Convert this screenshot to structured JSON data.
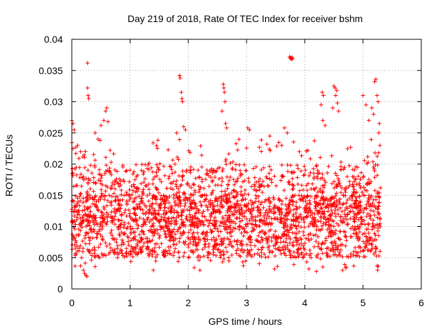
{
  "chart_data": {
    "type": "scatter",
    "title": "Day 219 of 2018, Rate Of TEC Index for receiver bshm",
    "xlabel": "GPS time / hours",
    "ylabel": "ROTI / TECUs",
    "xlim": [
      0,
      6
    ],
    "ylim": [
      0,
      0.04
    ],
    "x_ticks": [
      0,
      1,
      2,
      3,
      4,
      5,
      6
    ],
    "x_tick_labels": [
      "0",
      "1",
      "2",
      "3",
      "4",
      "5",
      "6"
    ],
    "y_ticks": [
      0,
      0.005,
      0.01,
      0.015,
      0.02,
      0.025,
      0.03,
      0.035,
      0.04
    ],
    "y_tick_labels": [
      "0",
      "0.005",
      "0.01",
      "0.015",
      "0.02",
      "0.025",
      "0.03",
      "0.035",
      "0.04"
    ],
    "grid": true,
    "marker": "+",
    "color": "#ff0000",
    "series": [
      {
        "name": "ROTI",
        "x_range": [
          0,
          5.3
        ],
        "typical_range": [
          0.003,
          0.024
        ],
        "points": [
          [
            0.0,
            0.027
          ],
          [
            0.02,
            0.0265
          ],
          [
            0.04,
            0.0255
          ],
          [
            0.1,
            0.023
          ],
          [
            0.15,
            0.022
          ],
          [
            0.2,
            0.003
          ],
          [
            0.22,
            0.0025
          ],
          [
            0.24,
            0.0022
          ],
          [
            0.26,
            0.002
          ],
          [
            0.27,
            0.0362
          ],
          [
            0.27,
            0.0322
          ],
          [
            0.28,
            0.031
          ],
          [
            0.29,
            0.0305
          ],
          [
            0.4,
            0.025
          ],
          [
            0.45,
            0.024
          ],
          [
            0.5,
            0.0262
          ],
          [
            0.55,
            0.027
          ],
          [
            0.58,
            0.0285
          ],
          [
            0.6,
            0.029
          ],
          [
            0.62,
            0.0268
          ],
          [
            1.85,
            0.0342
          ],
          [
            1.86,
            0.0338
          ],
          [
            1.88,
            0.0315
          ],
          [
            1.89,
            0.0305
          ],
          [
            1.9,
            0.03
          ],
          [
            1.8,
            0.025
          ],
          [
            1.92,
            0.026
          ],
          [
            1.95,
            0.0255
          ],
          [
            2.6,
            0.0328
          ],
          [
            2.61,
            0.0322
          ],
          [
            2.62,
            0.0315
          ],
          [
            2.63,
            0.03
          ],
          [
            2.58,
            0.0285
          ],
          [
            2.64,
            0.0265
          ],
          [
            2.66,
            0.0258
          ],
          [
            3.02,
            0.0258
          ],
          [
            3.05,
            0.0255
          ],
          [
            3.4,
            0.0245
          ],
          [
            3.65,
            0.0258
          ],
          [
            3.7,
            0.025
          ],
          [
            3.74,
            0.0372
          ],
          [
            3.75,
            0.037
          ],
          [
            3.76,
            0.037
          ],
          [
            3.77,
            0.0368
          ],
          [
            3.78,
            0.0371
          ],
          [
            3.79,
            0.0369
          ],
          [
            4.3,
            0.0315
          ],
          [
            4.32,
            0.031
          ],
          [
            4.28,
            0.0295
          ],
          [
            4.31,
            0.027
          ],
          [
            4.35,
            0.0262
          ],
          [
            4.5,
            0.0325
          ],
          [
            4.52,
            0.0322
          ],
          [
            4.55,
            0.0318
          ],
          [
            4.53,
            0.031
          ],
          [
            4.56,
            0.0298
          ],
          [
            4.58,
            0.0285
          ],
          [
            4.48,
            0.029
          ],
          [
            5.0,
            0.031
          ],
          [
            5.05,
            0.0295
          ],
          [
            5.15,
            0.029
          ],
          [
            5.2,
            0.0332
          ],
          [
            5.22,
            0.0336
          ],
          [
            5.24,
            0.031
          ],
          [
            5.26,
            0.03
          ],
          [
            5.18,
            0.028
          ],
          [
            5.28,
            0.0265
          ],
          [
            5.27,
            0.025
          ],
          [
            5.1,
            0.027
          ],
          [
            5.29,
            0.023
          ],
          [
            3.75,
            0.008
          ],
          [
            2.2,
            0.003
          ],
          [
            1.4,
            0.003
          ],
          [
            4.2,
            0.0028
          ],
          [
            4.65,
            0.003
          ],
          [
            5.25,
            0.003
          ]
        ]
      }
    ]
  }
}
